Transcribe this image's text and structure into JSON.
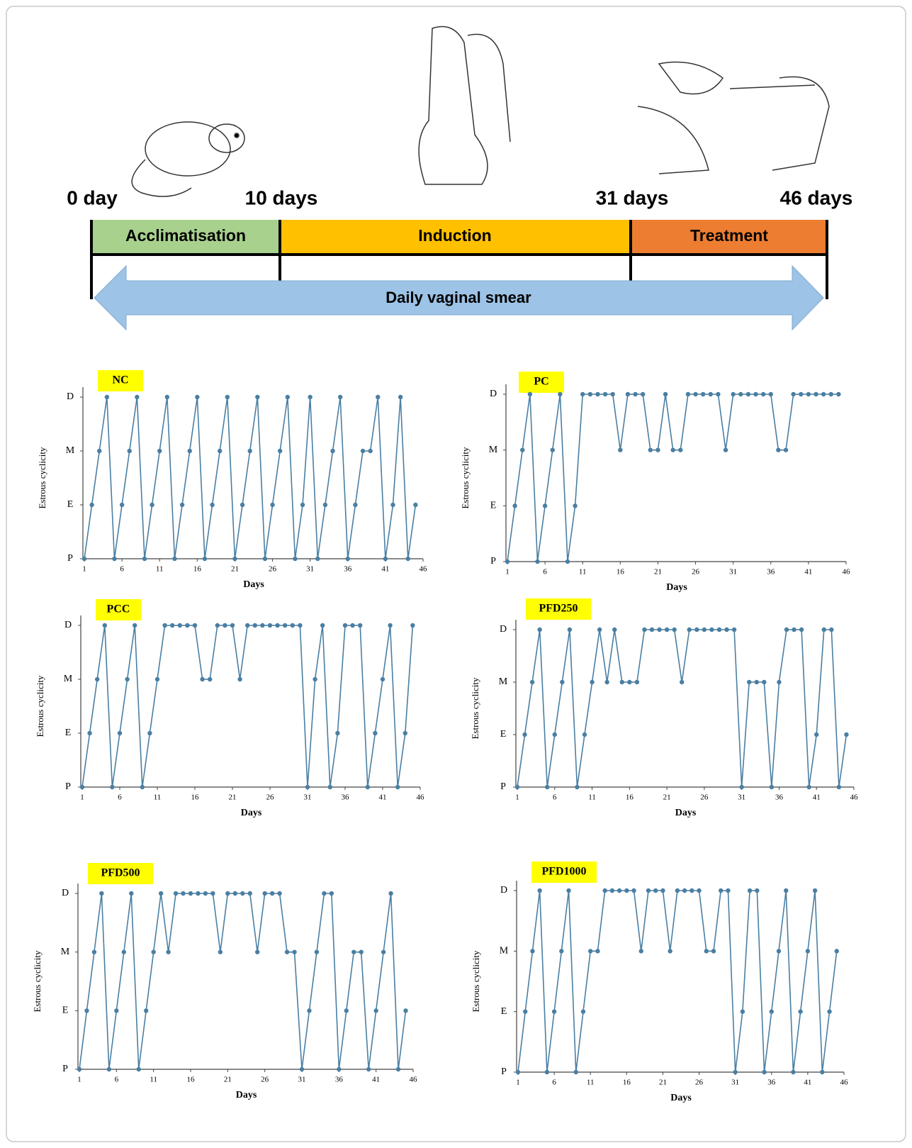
{
  "timeline": {
    "day_labels": [
      "0 day",
      "10 days",
      "31 days",
      "46 days"
    ],
    "phases": [
      "Acclimatisation",
      "Induction",
      "Treatment"
    ],
    "arrow_label": "Daily vaginal smear"
  },
  "chart_data": [
    {
      "type": "line",
      "title": "NC",
      "xlabel": "Days",
      "ylabel": "Estrous cyclicity",
      "x": [
        1,
        2,
        3,
        4,
        5,
        6,
        7,
        8,
        9,
        10,
        11,
        12,
        13,
        14,
        15,
        16,
        17,
        18,
        19,
        20,
        21,
        22,
        23,
        24,
        25,
        26,
        27,
        28,
        29,
        30,
        31,
        32,
        33,
        34,
        35,
        36,
        37,
        38,
        39,
        40,
        41,
        42,
        43,
        44,
        45
      ],
      "series": [
        {
          "color": "#4a7fa3",
          "values": [
            0,
            1,
            2,
            3,
            0,
            1,
            2,
            3,
            0,
            1,
            2,
            3,
            0,
            1,
            2,
            3,
            0,
            1,
            2,
            3,
            0,
            1,
            2,
            3,
            0,
            1,
            2,
            3,
            0,
            1,
            3,
            0,
            1,
            2,
            3,
            0,
            1,
            2,
            2,
            3,
            0,
            1,
            3,
            0,
            1
          ]
        }
      ],
      "xlim": [
        1,
        46
      ],
      "xticks": [
        1,
        6,
        11,
        16,
        21,
        26,
        31,
        36,
        41,
        46
      ],
      "ylim": [
        0,
        3
      ],
      "yticks": [
        {
          "value": 0,
          "label": "P"
        },
        {
          "value": 1,
          "label": "E"
        },
        {
          "value": 2,
          "label": "M"
        },
        {
          "value": 3,
          "label": "D"
        }
      ]
    },
    {
      "type": "line",
      "title": "PC",
      "xlabel": "Days",
      "ylabel": "Estrous cyclicity",
      "x": [
        1,
        2,
        3,
        4,
        5,
        6,
        7,
        8,
        9,
        10,
        11,
        12,
        13,
        14,
        15,
        16,
        17,
        18,
        19,
        20,
        21,
        22,
        23,
        24,
        25,
        26,
        27,
        28,
        29,
        30,
        31,
        32,
        33,
        34,
        35,
        36,
        37,
        38,
        39,
        40,
        41,
        42,
        43,
        44,
        45
      ],
      "series": [
        {
          "color": "#4a7fa3",
          "values": [
            0,
            1,
            2,
            3,
            0,
            1,
            2,
            3,
            0,
            1,
            3,
            3,
            3,
            3,
            3,
            2,
            3,
            3,
            3,
            2,
            2,
            3,
            2,
            2,
            3,
            3,
            3,
            3,
            3,
            2,
            3,
            3,
            3,
            3,
            3,
            3,
            2,
            2,
            3,
            3,
            3,
            3,
            3,
            3,
            3
          ]
        }
      ],
      "xlim": [
        1,
        46
      ],
      "xticks": [
        1,
        6,
        11,
        16,
        21,
        26,
        31,
        36,
        41,
        46
      ],
      "ylim": [
        0,
        3
      ],
      "yticks": [
        {
          "value": 0,
          "label": "P"
        },
        {
          "value": 1,
          "label": "E"
        },
        {
          "value": 2,
          "label": "M"
        },
        {
          "value": 3,
          "label": "D"
        }
      ]
    },
    {
      "type": "line",
      "title": "PCC",
      "xlabel": "Days",
      "ylabel": "Estrous cyclicity",
      "x": [
        1,
        2,
        3,
        4,
        5,
        6,
        7,
        8,
        9,
        10,
        11,
        12,
        13,
        14,
        15,
        16,
        17,
        18,
        19,
        20,
        21,
        22,
        23,
        24,
        25,
        26,
        27,
        28,
        29,
        30,
        31,
        32,
        33,
        34,
        35,
        36,
        37,
        38,
        39,
        40,
        41,
        42,
        43,
        44,
        45
      ],
      "series": [
        {
          "color": "#4a7fa3",
          "values": [
            0,
            1,
            2,
            3,
            0,
            1,
            2,
            3,
            0,
            1,
            2,
            3,
            3,
            3,
            3,
            3,
            2,
            2,
            3,
            3,
            3,
            2,
            3,
            3,
            3,
            3,
            3,
            3,
            3,
            3,
            0,
            2,
            3,
            0,
            1,
            3,
            3,
            3,
            0,
            1,
            2,
            3,
            0,
            1,
            3
          ]
        }
      ],
      "xlim": [
        1,
        46
      ],
      "xticks": [
        1,
        6,
        11,
        16,
        21,
        26,
        31,
        36,
        41,
        46
      ],
      "ylim": [
        0,
        3
      ],
      "yticks": [
        {
          "value": 0,
          "label": "P"
        },
        {
          "value": 1,
          "label": "E"
        },
        {
          "value": 2,
          "label": "M"
        },
        {
          "value": 3,
          "label": "D"
        }
      ]
    },
    {
      "type": "line",
      "title": "PFD250",
      "xlabel": "Days",
      "ylabel": "Estrous cyclicity",
      "x": [
        1,
        2,
        3,
        4,
        5,
        6,
        7,
        8,
        9,
        10,
        11,
        12,
        13,
        14,
        15,
        16,
        17,
        18,
        19,
        20,
        21,
        22,
        23,
        24,
        25,
        26,
        27,
        28,
        29,
        30,
        31,
        32,
        33,
        34,
        35,
        36,
        37,
        38,
        39,
        40,
        41,
        42,
        43,
        44,
        45
      ],
      "series": [
        {
          "color": "#4a7fa3",
          "values": [
            0,
            1,
            2,
            3,
            0,
            1,
            2,
            3,
            0,
            1,
            2,
            3,
            2,
            3,
            2,
            2,
            2,
            3,
            3,
            3,
            3,
            3,
            2,
            3,
            3,
            3,
            3,
            3,
            3,
            3,
            0,
            2,
            2,
            2,
            0,
            2,
            3,
            3,
            3,
            0,
            1,
            3,
            3,
            0,
            1
          ]
        }
      ],
      "xlim": [
        1,
        46
      ],
      "xticks": [
        1,
        6,
        11,
        16,
        21,
        26,
        31,
        36,
        41,
        46
      ],
      "ylim": [
        0,
        3
      ],
      "yticks": [
        {
          "value": 0,
          "label": "P"
        },
        {
          "value": 1,
          "label": "E"
        },
        {
          "value": 2,
          "label": "M"
        },
        {
          "value": 3,
          "label": "D"
        }
      ]
    },
    {
      "type": "line",
      "title": "PFD500",
      "xlabel": "Days",
      "ylabel": "Estrous cyclicity",
      "x": [
        1,
        2,
        3,
        4,
        5,
        6,
        7,
        8,
        9,
        10,
        11,
        12,
        13,
        14,
        15,
        16,
        17,
        18,
        19,
        20,
        21,
        22,
        23,
        24,
        25,
        26,
        27,
        28,
        29,
        30,
        31,
        32,
        33,
        34,
        35,
        36,
        37,
        38,
        39,
        40,
        41,
        42,
        43,
        44,
        45
      ],
      "series": [
        {
          "color": "#4a7fa3",
          "values": [
            0,
            1,
            2,
            3,
            0,
            1,
            2,
            3,
            0,
            1,
            2,
            3,
            2,
            3,
            3,
            3,
            3,
            3,
            3,
            2,
            3,
            3,
            3,
            3,
            2,
            3,
            3,
            3,
            2,
            2,
            0,
            1,
            2,
            3,
            3,
            0,
            1,
            2,
            2,
            0,
            1,
            2,
            3,
            0,
            1
          ]
        }
      ],
      "xlim": [
        1,
        46
      ],
      "xticks": [
        1,
        6,
        11,
        16,
        21,
        26,
        31,
        36,
        41,
        46
      ],
      "ylim": [
        0,
        3
      ],
      "yticks": [
        {
          "value": 0,
          "label": "P"
        },
        {
          "value": 1,
          "label": "E"
        },
        {
          "value": 2,
          "label": "M"
        },
        {
          "value": 3,
          "label": "D"
        }
      ]
    },
    {
      "type": "line",
      "title": "PFD1000",
      "xlabel": "Days",
      "ylabel": "Estrous cyclicity",
      "x": [
        1,
        2,
        3,
        4,
        5,
        6,
        7,
        8,
        9,
        10,
        11,
        12,
        13,
        14,
        15,
        16,
        17,
        18,
        19,
        20,
        21,
        22,
        23,
        24,
        25,
        26,
        27,
        28,
        29,
        30,
        31,
        32,
        33,
        34,
        35,
        36,
        37,
        38,
        39,
        40,
        41,
        42,
        43,
        44,
        45
      ],
      "series": [
        {
          "color": "#4a7fa3",
          "values": [
            0,
            1,
            2,
            3,
            0,
            1,
            2,
            3,
            0,
            1,
            2,
            2,
            3,
            3,
            3,
            3,
            3,
            2,
            3,
            3,
            3,
            2,
            3,
            3,
            3,
            3,
            2,
            2,
            3,
            3,
            0,
            1,
            3,
            3,
            0,
            1,
            2,
            3,
            0,
            1,
            2,
            3,
            0,
            1,
            2
          ]
        }
      ],
      "xlim": [
        1,
        46
      ],
      "xticks": [
        1,
        6,
        11,
        16,
        21,
        26,
        31,
        36,
        41,
        46
      ],
      "ylim": [
        0,
        3
      ],
      "yticks": [
        {
          "value": 0,
          "label": "P"
        },
        {
          "value": 1,
          "label": "E"
        },
        {
          "value": 2,
          "label": "M"
        },
        {
          "value": 3,
          "label": "D"
        }
      ]
    }
  ]
}
